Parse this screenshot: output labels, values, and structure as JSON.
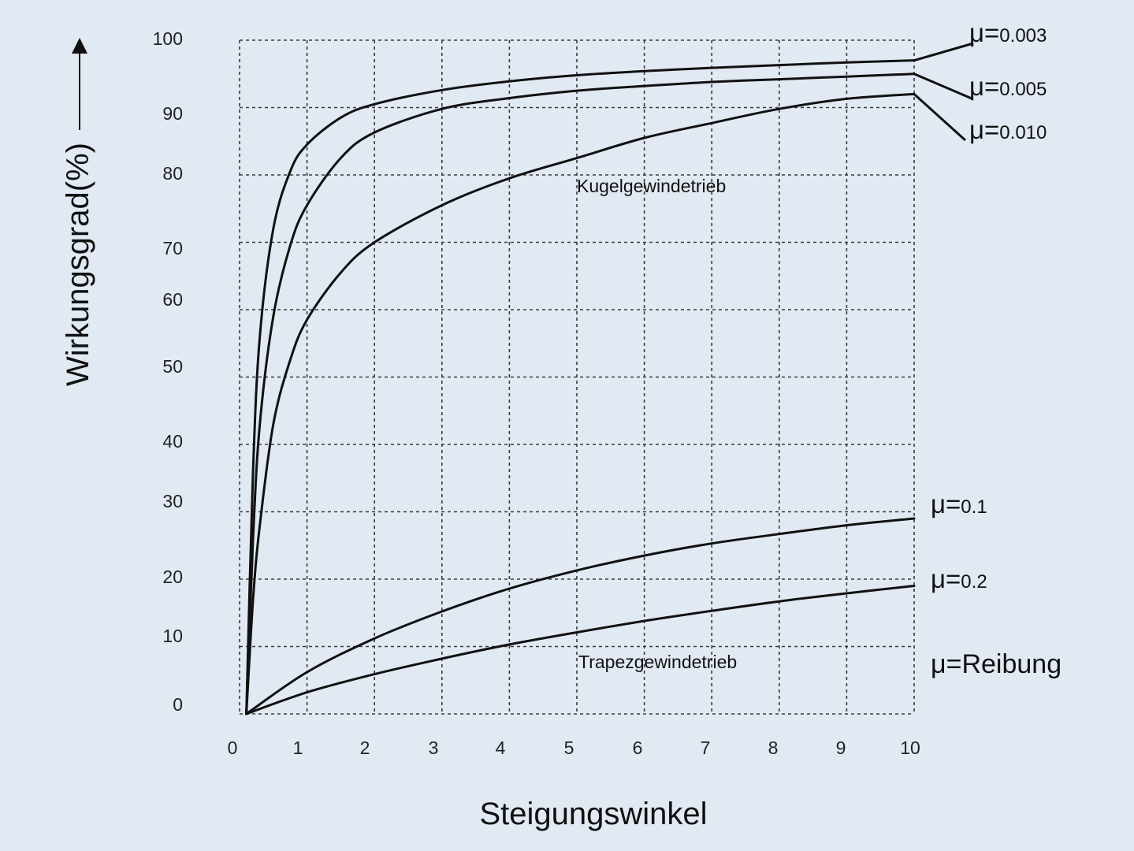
{
  "chart_data": {
    "type": "line",
    "xlabel": "Steigungswinkel",
    "ylabel": "Wirkungsgrad(%)",
    "xlim": [
      0,
      10
    ],
    "ylim": [
      0,
      100
    ],
    "x_ticks": [
      "0",
      "1",
      "2",
      "3",
      "4",
      "5",
      "6",
      "7",
      "8",
      "9",
      "10"
    ],
    "y_ticks": [
      "0",
      "10",
      "20",
      "30",
      "40",
      "50",
      "60",
      "70",
      "80",
      "90",
      "100"
    ],
    "grid": true,
    "series": [
      {
        "name": "μ=0.003",
        "label_prefix": "μ=",
        "label_value": "0.003",
        "x": [
          0.1,
          0.2,
          0.3,
          0.5,
          0.75,
          1,
          1.5,
          2,
          3,
          4,
          5,
          6,
          7,
          8,
          9,
          10
        ],
        "y": [
          0,
          36,
          56,
          72,
          80.5,
          84.5,
          88.5,
          90.5,
          92.6,
          93.9,
          94.8,
          95.4,
          95.9,
          96.3,
          96.7,
          97
        ]
      },
      {
        "name": "μ=0.005",
        "label_prefix": "μ=",
        "label_value": "0.005",
        "x": [
          0.1,
          0.2,
          0.3,
          0.5,
          0.75,
          1,
          1.5,
          2,
          3,
          4,
          5,
          6,
          7,
          8,
          9,
          10
        ],
        "y": [
          0,
          26,
          43,
          59,
          69.5,
          75.5,
          82.5,
          86.3,
          89.8,
          91.4,
          92.5,
          93.2,
          93.8,
          94.2,
          94.6,
          95
        ]
      },
      {
        "name": "μ=0.010",
        "label_prefix": "μ=",
        "label_value": "0.010",
        "x": [
          0.1,
          0.2,
          0.3,
          0.5,
          0.75,
          1,
          1.5,
          2,
          3,
          4,
          5,
          6,
          7,
          8,
          9,
          10
        ],
        "y": [
          0,
          17,
          28,
          43,
          52.5,
          58.5,
          65.5,
          70,
          75.5,
          79.5,
          82.5,
          85.5,
          87.7,
          89.8,
          91.3,
          92
        ]
      },
      {
        "name": "μ=0.1",
        "label_prefix": "μ=",
        "label_value": "0.1",
        "x": [
          0.1,
          1,
          2,
          3,
          4,
          5,
          6,
          7,
          8,
          9,
          10
        ],
        "y": [
          0,
          6.2,
          11.2,
          15.2,
          18.6,
          21.3,
          23.5,
          25.3,
          26.7,
          28,
          29
        ]
      },
      {
        "name": "μ=0.2",
        "label_prefix": "μ=",
        "label_value": "0.2",
        "x": [
          0.1,
          1,
          2,
          3,
          4,
          5,
          6,
          7,
          8,
          9,
          10
        ],
        "y": [
          0,
          3.2,
          5.9,
          8.2,
          10.3,
          12.1,
          13.8,
          15.3,
          16.7,
          17.9,
          19
        ]
      }
    ],
    "annotations": [
      "Kugelgewindetrieb",
      "Trapezgewindetrieb"
    ],
    "legend_note": "μ=Reibung"
  }
}
